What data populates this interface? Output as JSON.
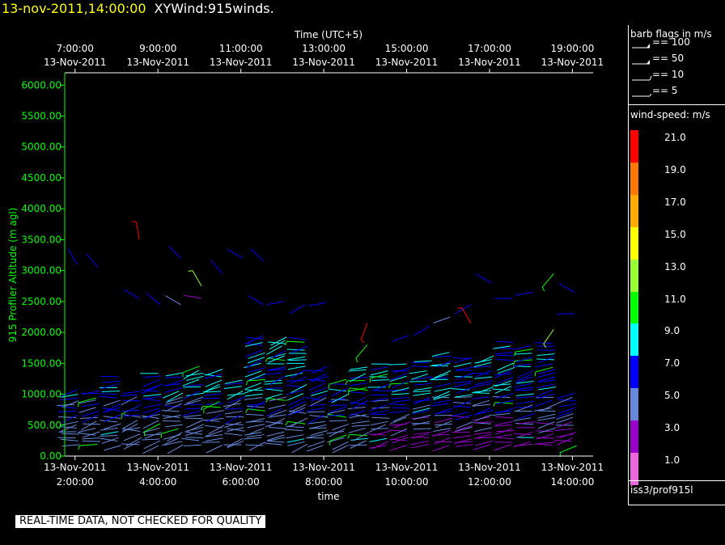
{
  "header": {
    "timestamp": "13-nov-2011,14:00:00",
    "name": "XYWind:915winds."
  },
  "notice": "REAL-TIME DATA, NOT CHECKED FOR QUALITY",
  "legend": {
    "barb_title": "barb flags in m/s",
    "barbs": [
      {
        "label": "== 100",
        "value": 100
      },
      {
        "label": "== 50",
        "value": 50
      },
      {
        "label": "== 10",
        "value": 10
      },
      {
        "label": "== 5",
        "value": 5
      }
    ],
    "speed_title": "wind-speed: m/s",
    "speed_levels": [
      {
        "label": "21.0",
        "color": "#ff0000"
      },
      {
        "label": "19.0",
        "color": "#ff7700"
      },
      {
        "label": "17.0",
        "color": "#ffaa00"
      },
      {
        "label": "15.0",
        "color": "#ffff00"
      },
      {
        "label": "13.0",
        "color": "#99ff33"
      },
      {
        "label": "11.0",
        "color": "#00ff00"
      },
      {
        "label": "9.0",
        "color": "#00ffff"
      },
      {
        "label": "7.0",
        "color": "#0000ff"
      },
      {
        "label": "5.0",
        "color": "#6688dd"
      },
      {
        "label": "3.0",
        "color": "#9900cc"
      },
      {
        "label": "1.0",
        "color": "#ee66dd"
      }
    ],
    "source": "iss3/prof915l"
  },
  "chart_data": {
    "type": "scatter",
    "ylabel": "915 Profiler Altitude (m agl)",
    "xlabel": "time",
    "top_axis_label": "Time (UTC+5)",
    "ylim": [
      0,
      6200
    ],
    "yticks": [
      "0.00",
      "500.00",
      "1000.00",
      "1500.00",
      "2000.00",
      "2500.00",
      "3000.00",
      "3500.00",
      "4000.00",
      "4500.00",
      "5000.00",
      "5500.00",
      "6000.00"
    ],
    "xlim": [
      "13-Nov-2011 1:45:00",
      "13-Nov-2011 14:30:00"
    ],
    "bottom_ticks": [
      {
        "date": "13-Nov-2011",
        "time": "2:00:00",
        "hours": 2
      },
      {
        "date": "13-Nov-2011",
        "time": "4:00:00",
        "hours": 4
      },
      {
        "date": "13-Nov-2011",
        "time": "6:00:00",
        "hours": 6
      },
      {
        "date": "13-Nov-2011",
        "time": "8:00:00",
        "hours": 8
      },
      {
        "date": "13-Nov-2011",
        "time": "10:00:00",
        "hours": 10
      },
      {
        "date": "13-Nov-2011",
        "time": "12:00:00",
        "hours": 12
      },
      {
        "date": "13-Nov-2011",
        "time": "14:00:00",
        "hours": 14
      }
    ],
    "top_ticks": [
      {
        "time": "7:00:00",
        "date": "13-Nov-2011",
        "hours": 2
      },
      {
        "time": "9:00:00",
        "date": "13-Nov-2011",
        "hours": 4
      },
      {
        "time": "11:00:00",
        "date": "13-Nov-2011",
        "hours": 6
      },
      {
        "time": "13:00:00",
        "date": "13-Nov-2011",
        "hours": 8
      },
      {
        "time": "15:00:00",
        "date": "13-Nov-2011",
        "hours": 10
      },
      {
        "time": "17:00:00",
        "date": "13-Nov-2011",
        "hours": 12
      },
      {
        "time": "19:00:00",
        "date": "13-Nov-2011",
        "hours": 14
      }
    ],
    "profile_hours": [
      2.05,
      2.55,
      3.05,
      3.55,
      4.05,
      4.55,
      5.05,
      5.55,
      6.05,
      6.55,
      7.05,
      7.55,
      8.05,
      8.55,
      9.05,
      9.55,
      10.05,
      10.55,
      11.05,
      11.55,
      12.05,
      12.55,
      13.05,
      13.55,
      14.05
    ],
    "profile_tops": [
      1080,
      1080,
      1300,
      1100,
      1380,
      1350,
      1450,
      1400,
      1250,
      1950,
      1980,
      1900,
      1450,
      1250,
      1480,
      1500,
      1500,
      1570,
      1680,
      1630,
      1650,
      1850,
      1800,
      1850,
      1050
    ],
    "upper_barbs": [
      {
        "t": 2.05,
        "z": 3100,
        "spd": 6,
        "dir": 330
      },
      {
        "t": 2.55,
        "z": 3050,
        "spd": 6,
        "dir": 320
      },
      {
        "t": 3.55,
        "z": 3500,
        "spd": 21,
        "dir": 350
      },
      {
        "t": 3.55,
        "z": 2550,
        "spd": 7,
        "dir": 300
      },
      {
        "t": 4.05,
        "z": 2450,
        "spd": 6,
        "dir": 310
      },
      {
        "t": 4.55,
        "z": 3200,
        "spd": 6,
        "dir": 315
      },
      {
        "t": 4.55,
        "z": 2450,
        "spd": 4,
        "dir": 300
      },
      {
        "t": 5.05,
        "z": 2750,
        "spd": 13,
        "dir": 330
      },
      {
        "t": 5.05,
        "z": 2550,
        "spd": 3,
        "dir": 280
      },
      {
        "t": 5.55,
        "z": 2950,
        "spd": 7,
        "dir": 320
      },
      {
        "t": 6.05,
        "z": 3200,
        "spd": 7,
        "dir": 300
      },
      {
        "t": 6.55,
        "z": 3150,
        "spd": 7,
        "dir": 315
      },
      {
        "t": 6.55,
        "z": 2450,
        "spd": 6,
        "dir": 300
      },
      {
        "t": 7.05,
        "z": 2500,
        "spd": 6,
        "dir": 260
      },
      {
        "t": 7.55,
        "z": 2450,
        "spd": 6,
        "dir": 240
      },
      {
        "t": 8.05,
        "z": 2480,
        "spd": 6,
        "dir": 260
      },
      {
        "t": 9.05,
        "z": 2150,
        "spd": 21,
        "dir": 200
      },
      {
        "t": 9.05,
        "z": 1800,
        "spd": 11,
        "dir": 220
      },
      {
        "t": 10.05,
        "z": 1950,
        "spd": 6,
        "dir": 250
      },
      {
        "t": 10.55,
        "z": 2100,
        "spd": 7,
        "dir": 240
      },
      {
        "t": 11.05,
        "z": 2250,
        "spd": 5,
        "dir": 250
      },
      {
        "t": 11.55,
        "z": 2450,
        "spd": 6,
        "dir": 240
      },
      {
        "t": 11.55,
        "z": 2150,
        "spd": 21,
        "dir": 330
      },
      {
        "t": 12.05,
        "z": 2800,
        "spd": 7,
        "dir": 300
      },
      {
        "t": 12.55,
        "z": 2550,
        "spd": 7,
        "dir": 270
      },
      {
        "t": 13.05,
        "z": 2650,
        "spd": 7,
        "dir": 260
      },
      {
        "t": 13.55,
        "z": 2950,
        "spd": 11,
        "dir": 220
      },
      {
        "t": 13.55,
        "z": 2050,
        "spd": 12,
        "dir": 215
      },
      {
        "t": 14.05,
        "z": 2650,
        "spd": 6,
        "dir": 300
      },
      {
        "t": 14.05,
        "z": 2300,
        "spd": 7,
        "dir": 270
      }
    ]
  }
}
